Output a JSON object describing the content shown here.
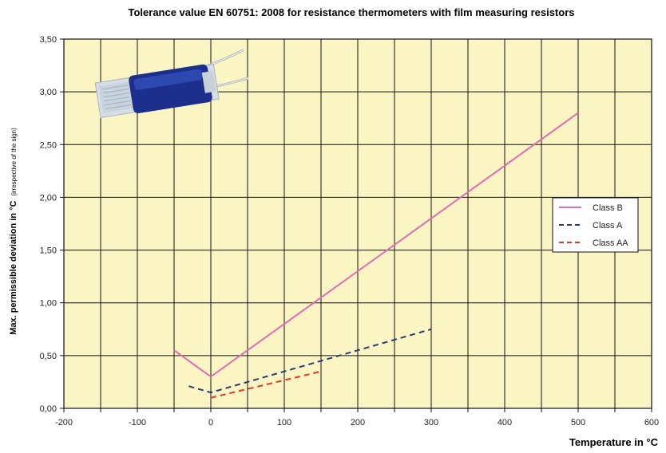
{
  "chart_data": {
    "type": "line",
    "title": "Tolerance value EN 60751: 2008 for resistance thermometers with film measuring resistors",
    "xlabel": "Temperature in °C",
    "ylabel": "Max. permissible deviation in °C",
    "ylabel_note": "(irrespective of the sign)",
    "xlim": [
      -200,
      600
    ],
    "ylim": [
      0,
      3.5
    ],
    "x_ticks": [
      -200,
      -150,
      -100,
      -50,
      0,
      50,
      100,
      150,
      200,
      250,
      300,
      350,
      400,
      450,
      500,
      550,
      600
    ],
    "x_tick_labels": [
      "-200",
      "-100",
      "0",
      "100",
      "200",
      "300",
      "400",
      "500",
      "600"
    ],
    "x_tick_label_values": [
      -200,
      -100,
      0,
      100,
      200,
      300,
      400,
      500,
      600
    ],
    "y_ticks": [
      0,
      0.5,
      1.0,
      1.5,
      2.0,
      2.5,
      3.0,
      3.5
    ],
    "y_tick_labels": [
      "0,00",
      "0,50",
      "1,00",
      "1,50",
      "2,00",
      "2,50",
      "3,00",
      "3,50"
    ],
    "grid": true,
    "plot_background": "#faf5c3",
    "legend_position": "right",
    "series": [
      {
        "name": "Class B",
        "color": "#e06cb4",
        "dash": "solid",
        "x": [
          -50,
          0,
          500
        ],
        "y": [
          0.55,
          0.3,
          2.8
        ]
      },
      {
        "name": "Class A",
        "color": "#283a78",
        "dash": "dashed",
        "x": [
          -30,
          0,
          300
        ],
        "y": [
          0.21,
          0.15,
          0.75
        ]
      },
      {
        "name": "Class AA",
        "color": "#e8342a",
        "dash": "dashed",
        "x": [
          0,
          150
        ],
        "y": [
          0.1,
          0.35
        ]
      }
    ]
  }
}
